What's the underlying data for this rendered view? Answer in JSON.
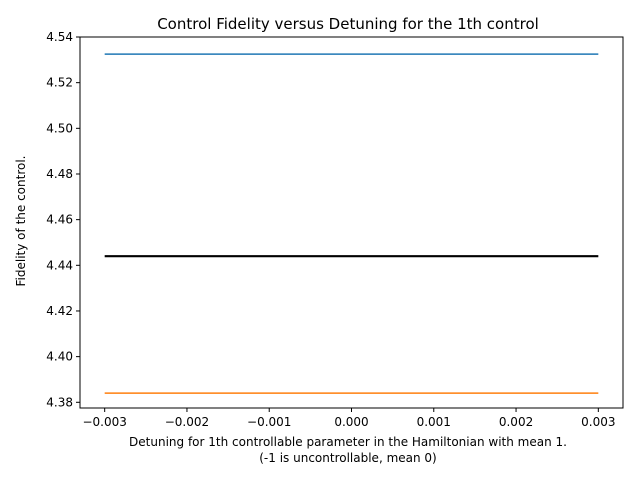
{
  "chart_data": {
    "type": "line",
    "title": "Control Fidelity versus Detuning for the 1th control",
    "xlabel_lines": [
      "Detuning for 1th controllable parameter in the Hamiltonian with mean 1.",
      "(-1 is uncontrollable, mean 0)"
    ],
    "ylabel": "Fidelity of the control.",
    "xlim": [
      -0.0033,
      0.0033
    ],
    "ylim": [
      4.3775,
      4.54
    ],
    "x_ticks": [
      -0.003,
      -0.002,
      -0.001,
      0.0,
      0.001,
      0.002,
      0.003
    ],
    "x_tick_labels": [
      "−0.003",
      "−0.002",
      "−0.001",
      "0.000",
      "0.001",
      "0.002",
      "0.003"
    ],
    "y_ticks": [
      4.38,
      4.4,
      4.42,
      4.44,
      4.46,
      4.48,
      4.5,
      4.52,
      4.54
    ],
    "y_tick_labels": [
      "4.38",
      "4.40",
      "4.42",
      "4.44",
      "4.46",
      "4.48",
      "4.50",
      "4.52",
      "4.54"
    ],
    "grid": false,
    "legend": "none",
    "series": [
      {
        "x": [
          -0.003,
          0.003
        ],
        "y": [
          4.5325,
          4.5325
        ],
        "color": "#1f77b4",
        "width": 1.5
      },
      {
        "x": [
          -0.003,
          0.003
        ],
        "y": [
          4.444,
          4.444
        ],
        "color": "#000000",
        "width": 2.2
      },
      {
        "x": [
          -0.003,
          0.003
        ],
        "y": [
          4.384,
          4.384
        ],
        "color": "#ff7f0e",
        "width": 1.5
      }
    ]
  }
}
